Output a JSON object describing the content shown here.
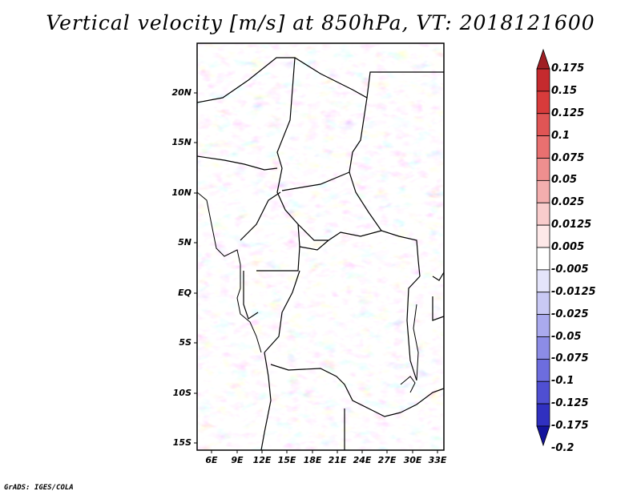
{
  "title": "Vertical velocity [m/s] at 850hPa, VT: 2018121600",
  "map": {
    "lat_labels": [
      "20N",
      "15N",
      "10N",
      "5N",
      "EQ",
      "5S",
      "10S",
      "15S"
    ],
    "lon_labels": [
      "6E",
      "9E",
      "12E",
      "15E",
      "18E",
      "21E",
      "24E",
      "27E",
      "30E",
      "33E"
    ]
  },
  "colorbar": {
    "levels": [
      "0.175",
      "0.15",
      "0.125",
      "0.1",
      "0.075",
      "0.05",
      "0.025",
      "0.0125",
      "0.005",
      "-0.005",
      "-0.0125",
      "-0.025",
      "-0.05",
      "-0.075",
      "-0.1",
      "-0.125",
      "-0.175",
      "-0.2"
    ],
    "colors": [
      "#a01f24",
      "#c52a2e",
      "#d83b3b",
      "#e05555",
      "#e87070",
      "#ee8f8f",
      "#f3aeae",
      "#f8cccc",
      "#fde8e8",
      "#ffffff",
      "#e4e4fa",
      "#c9c9f4",
      "#aaaaee",
      "#8c8ce6",
      "#6d6dde",
      "#4f4fd2",
      "#3030c0",
      "#14149c"
    ]
  },
  "credit": "GrADS: IGES/COLA"
}
